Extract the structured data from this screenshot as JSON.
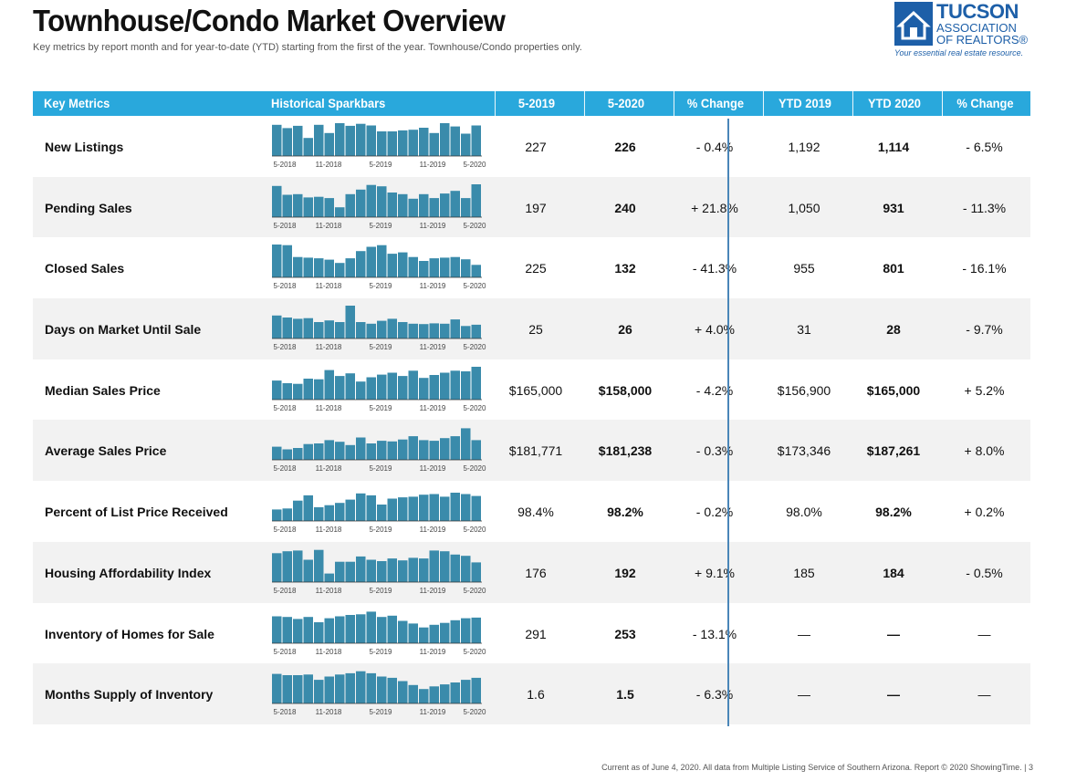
{
  "header": {
    "title": "Townhouse/Condo Market Overview",
    "subtitle": "Key metrics by report month and for year-to-date (YTD) starting from the first of the year. Townhouse/Condo properties only."
  },
  "logo": {
    "line1": "TUCSON",
    "line2": "ASSOCIATION",
    "line3": "OF REALTORS®",
    "tagline": "Your essential real estate resource."
  },
  "colors": {
    "header_bg": "#29a8dc",
    "bar": "#3a8bab",
    "divider": "#4a86b8",
    "row_alt": "#f2f2f2"
  },
  "columns": [
    "Key Metrics",
    "Historical Sparkbars",
    "5-2019",
    "5-2020",
    "% Change",
    "YTD 2019",
    "YTD 2020",
    "% Change"
  ],
  "spark_ticks": [
    "5-2018",
    "11-2018",
    "5-2019",
    "11-2019",
    "5-2020"
  ],
  "rows": [
    {
      "metric": "New Listings",
      "m2019": "227",
      "m2020": "226",
      "pct": "- 0.4%",
      "ytd2019": "1,192",
      "ytd2020": "1,114",
      "ytdpct": "- 6.5%",
      "bars": [
        0.95,
        0.85,
        0.92,
        0.55,
        0.95,
        0.7,
        1.0,
        0.92,
        0.98,
        0.93,
        0.75,
        0.75,
        0.78,
        0.8,
        0.86,
        0.7,
        1.0,
        0.9,
        0.68,
        0.93
      ]
    },
    {
      "metric": "Pending Sales",
      "m2019": "197",
      "m2020": "240",
      "pct": "+ 21.8%",
      "ytd2019": "1,050",
      "ytd2020": "931",
      "ytdpct": "- 11.3%",
      "bars": [
        0.95,
        0.68,
        0.7,
        0.6,
        0.62,
        0.58,
        0.3,
        0.7,
        0.84,
        0.98,
        0.94,
        0.75,
        0.7,
        0.56,
        0.7,
        0.58,
        0.72,
        0.8,
        0.58,
        1.0
      ]
    },
    {
      "metric": "Closed Sales",
      "m2019": "225",
      "m2020": "132",
      "pct": "- 41.3%",
      "ytd2019": "955",
      "ytd2020": "801",
      "ytdpct": "- 16.1%",
      "bars": [
        1.0,
        0.98,
        0.62,
        0.6,
        0.58,
        0.54,
        0.44,
        0.58,
        0.8,
        0.93,
        0.98,
        0.72,
        0.76,
        0.62,
        0.5,
        0.58,
        0.6,
        0.62,
        0.55,
        0.38
      ]
    },
    {
      "metric": "Days on Market Until Sale",
      "m2019": "25",
      "m2020": "26",
      "pct": "+ 4.0%",
      "ytd2019": "31",
      "ytd2020": "28",
      "ytdpct": "- 9.7%",
      "bars": [
        0.7,
        0.64,
        0.6,
        0.62,
        0.5,
        0.55,
        0.5,
        1.0,
        0.5,
        0.45,
        0.54,
        0.6,
        0.5,
        0.45,
        0.44,
        0.46,
        0.45,
        0.58,
        0.38,
        0.42
      ]
    },
    {
      "metric": "Median Sales Price",
      "m2019": "$165,000",
      "m2020": "$158,000",
      "pct": "- 4.2%",
      "ytd2019": "$156,900",
      "ytd2020": "$165,000",
      "ytdpct": "+ 5.2%",
      "bars": [
        0.58,
        0.5,
        0.48,
        0.64,
        0.62,
        0.9,
        0.72,
        0.8,
        0.55,
        0.68,
        0.76,
        0.82,
        0.72,
        0.88,
        0.66,
        0.75,
        0.82,
        0.88,
        0.86,
        1.0
      ]
    },
    {
      "metric": "Average Sales Price",
      "m2019": "$181,771",
      "m2020": "$181,238",
      "pct": "- 0.3%",
      "ytd2019": "$173,346",
      "ytd2020": "$187,261",
      "ytdpct": "+ 8.0%",
      "bars": [
        0.4,
        0.32,
        0.36,
        0.48,
        0.5,
        0.6,
        0.55,
        0.45,
        0.68,
        0.5,
        0.58,
        0.56,
        0.62,
        0.72,
        0.6,
        0.58,
        0.66,
        0.72,
        0.96,
        0.6
      ]
    },
    {
      "metric": "Percent of List Price Received",
      "m2019": "98.4%",
      "m2020": "98.2%",
      "pct": "- 0.2%",
      "ytd2019": "98.0%",
      "ytd2020": "98.2%",
      "ytdpct": "+ 0.2%",
      "bars": [
        0.35,
        0.38,
        0.62,
        0.78,
        0.42,
        0.48,
        0.55,
        0.65,
        0.84,
        0.78,
        0.5,
        0.68,
        0.72,
        0.74,
        0.8,
        0.82,
        0.74,
        0.86,
        0.82,
        0.76
      ]
    },
    {
      "metric": "Housing Affordability Index",
      "m2019": "176",
      "m2020": "192",
      "pct": "+ 9.1%",
      "ytd2019": "185",
      "ytd2020": "184",
      "ytdpct": "- 0.5%",
      "bars": [
        0.88,
        0.94,
        0.96,
        0.68,
        0.98,
        0.26,
        0.62,
        0.62,
        0.78,
        0.68,
        0.64,
        0.72,
        0.66,
        0.74,
        0.72,
        0.96,
        0.94,
        0.84,
        0.8,
        0.6
      ]
    },
    {
      "metric": "Inventory of Homes for Sale",
      "m2019": "291",
      "m2020": "253",
      "pct": "- 13.1%",
      "ytd2019": "—",
      "ytd2020": "—",
      "ytdpct": "—",
      "bars": [
        0.82,
        0.8,
        0.74,
        0.8,
        0.64,
        0.76,
        0.82,
        0.86,
        0.88,
        0.96,
        0.8,
        0.84,
        0.68,
        0.6,
        0.48,
        0.56,
        0.62,
        0.7,
        0.76,
        0.78
      ]
    },
    {
      "metric": "Months Supply of Inventory",
      "m2019": "1.6",
      "m2020": "1.5",
      "pct": "- 6.3%",
      "ytd2019": "—",
      "ytd2020": "—",
      "ytdpct": "—",
      "bars": [
        0.9,
        0.86,
        0.86,
        0.88,
        0.72,
        0.82,
        0.88,
        0.92,
        0.98,
        0.92,
        0.82,
        0.78,
        0.68,
        0.56,
        0.44,
        0.52,
        0.58,
        0.64,
        0.72,
        0.78
      ]
    }
  ],
  "footer": "Current as of June 4, 2020. All data from Multiple Listing Service of Southern Arizona. Report © 2020 ShowingTime. | 3"
}
